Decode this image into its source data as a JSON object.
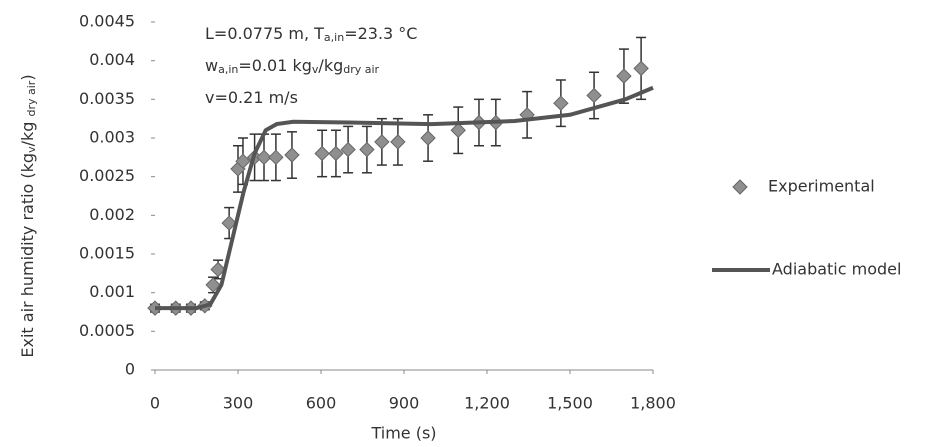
{
  "chart_data": {
    "type": "scatter",
    "x_label": "Time (s)",
    "y_label": [
      "Exit air humidity ratio (kg",
      "v",
      "/kg ",
      "dry air",
      ")"
    ],
    "annotations": [
      [
        "L=0.0775 m, T",
        "a,in",
        "=23.3 °C"
      ],
      [
        "w",
        "a,in",
        "=0.01 kg",
        "v",
        "/kg",
        "dry air"
      ],
      [
        "v=0.21 m/s"
      ]
    ],
    "xlim": [
      0,
      1800
    ],
    "xticks": [
      0,
      300,
      600,
      900,
      {
        "value": 1200,
        "label": "1,200"
      },
      {
        "value": 1500,
        "label": "1,500"
      },
      {
        "value": 1800,
        "label": "1,800"
      }
    ],
    "ylim": [
      0,
      0.0045
    ],
    "yticks": [
      0,
      0.0005,
      0.001,
      0.0015,
      0.002,
      0.0025,
      0.003,
      0.0035,
      0.004,
      0.0045
    ],
    "series": [
      {
        "name": "Experimental",
        "color": "#8f8f8f",
        "style": "marker",
        "x": [
          0,
          75,
          130,
          180,
          210,
          228,
          268,
          300,
          318,
          360,
          394,
          437,
          495,
          604,
          654,
          698,
          766,
          820,
          878,
          987,
          1096,
          1171,
          1232,
          1345,
          1467,
          1587,
          1695,
          1757
        ],
        "values": [
          0.0008,
          0.0008,
          0.0008,
          0.00083,
          0.0011,
          0.0013,
          0.0019,
          0.0026,
          0.0027,
          0.00275,
          0.00275,
          0.00275,
          0.00278,
          0.0028,
          0.0028,
          0.00285,
          0.00285,
          0.00295,
          0.00295,
          0.003,
          0.0031,
          0.0032,
          0.0032,
          0.0033,
          0.00345,
          0.00355,
          0.0038,
          0.0039
        ],
        "errors": [
          5e-05,
          5e-05,
          5e-05,
          5e-05,
          0.0001,
          0.00012,
          0.0002,
          0.0003,
          0.0003,
          0.0003,
          0.0003,
          0.0003,
          0.0003,
          0.0003,
          0.0003,
          0.0003,
          0.0003,
          0.0003,
          0.0003,
          0.0003,
          0.0003,
          0.0003,
          0.0003,
          0.0003,
          0.0003,
          0.0003,
          0.00035,
          0.0004
        ]
      },
      {
        "name": "Adiabatic model",
        "color": "#555555",
        "style": "line",
        "x": [
          0,
          150,
          200,
          240,
          280,
          320,
          360,
          400,
          440,
          500,
          700,
          1000,
          1300,
          1500,
          1700,
          1800
        ],
        "values": [
          0.0008,
          0.0008,
          0.00085,
          0.0011,
          0.0017,
          0.0023,
          0.0028,
          0.0031,
          0.00318,
          0.00321,
          0.0032,
          0.00318,
          0.00322,
          0.0033,
          0.0035,
          0.00365
        ]
      }
    ]
  }
}
